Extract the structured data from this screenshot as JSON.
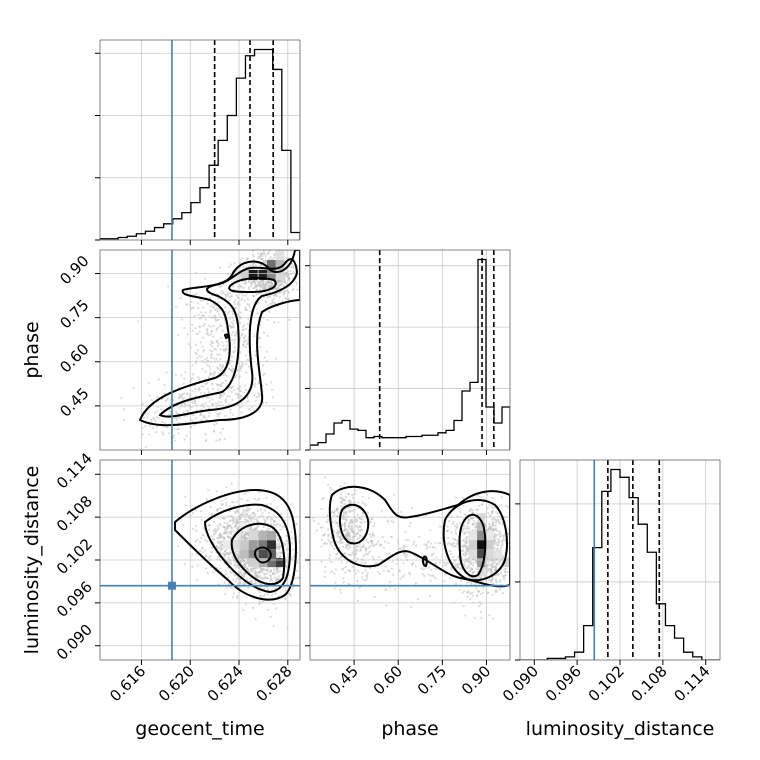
{
  "chart_data": {
    "type": "corner",
    "parameters": [
      "geocent_time",
      "phase",
      "luminosity_distance"
    ],
    "axis_labels": {
      "geocent_time": "geocent_time",
      "phase": "phase",
      "luminosity_distance": "luminosity_distance"
    },
    "ranges": {
      "geocent_time": [
        0.6126,
        0.629
      ],
      "phase": [
        0.3,
        0.98
      ],
      "luminosity_distance": [
        0.088,
        0.116
      ]
    },
    "ticks": {
      "geocent_time": [
        0.616,
        0.62,
        0.624,
        0.628
      ],
      "phase": [
        0.45,
        0.6,
        0.75,
        0.9
      ],
      "luminosity_distance": [
        0.09,
        0.096,
        0.102,
        0.108,
        0.114
      ]
    },
    "tick_labels": {
      "geocent_time": [
        "0.616",
        "0.620",
        "0.624",
        "0.628"
      ],
      "phase": [
        "0.45",
        "0.60",
        "0.75",
        "0.90"
      ],
      "luminosity_distance": [
        "0.090",
        "0.096",
        "0.102",
        "0.108",
        "0.114"
      ]
    },
    "truths": {
      "geocent_time": 0.6185,
      "phase": null,
      "luminosity_distance": 0.0984
    },
    "quantiles": {
      "geocent_time": [
        0.622,
        0.6249,
        0.6268
      ],
      "phase": [
        0.537,
        0.885,
        0.925
      ],
      "luminosity_distance": [
        0.1003,
        0.1038,
        0.1075
      ]
    },
    "histograms": {
      "geocent_time": {
        "edges_start": 0.6126,
        "edges_end": 0.629,
        "counts": [
          1,
          1,
          2,
          3,
          5,
          7,
          10,
          13,
          17,
          22,
          30,
          42,
          60,
          80,
          100,
          130,
          148,
          153,
          153,
          137,
          72,
          6
        ]
      },
      "phase": {
        "edges_start": 0.3,
        "edges_end": 0.98,
        "counts": [
          4,
          6,
          13,
          22,
          24,
          17,
          16,
          10,
          11,
          10,
          10,
          10,
          11,
          11,
          12,
          12,
          14,
          16,
          24,
          48,
          55,
          155,
          35,
          22,
          35
        ]
      },
      "luminosity_distance": {
        "edges_start": 0.088,
        "edges_end": 0.116,
        "counts": [
          0,
          0,
          0,
          1,
          1,
          2,
          5,
          22,
          72,
          108,
          122,
          117,
          104,
          87,
          69,
          36,
          22,
          14,
          5,
          2,
          0,
          0
        ]
      }
    },
    "grid": true,
    "contour_color": "#000000",
    "truth_color": "#4682b4",
    "point_color": "#bdbdbd"
  }
}
